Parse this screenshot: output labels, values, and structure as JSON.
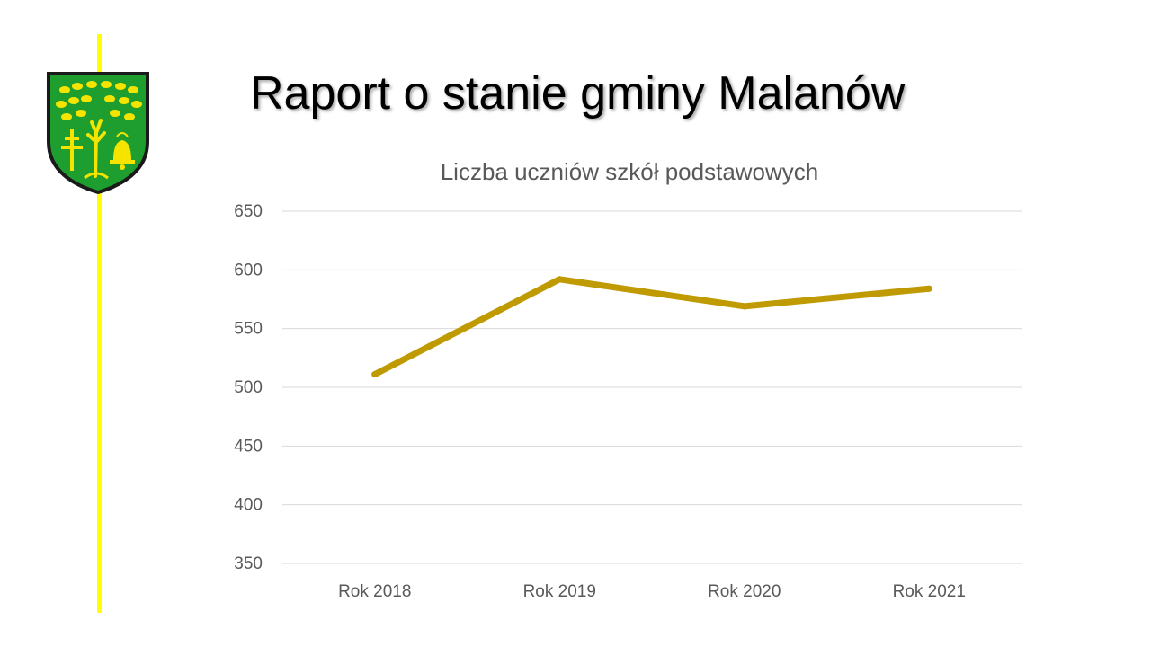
{
  "title": "Raport o stanie gminy Malanów",
  "chart_data": {
    "type": "line",
    "title": "Liczba uczniów szkół podstawowych",
    "categories": [
      "Rok 2018",
      "Rok 2019",
      "Rok 2020",
      "Rok 2021"
    ],
    "series": [
      {
        "name": "Liczba uczniów",
        "values": [
          511,
          592,
          569,
          584
        ]
      }
    ],
    "ylim": [
      350,
      650
    ],
    "yticks": [
      350,
      400,
      450,
      500,
      550,
      600,
      650
    ],
    "xlabel": "",
    "ylabel": "",
    "grid": true,
    "legend": "none"
  },
  "colors": {
    "line": "#bf9a00",
    "accent": "#ffff00",
    "grid": "#d9d9d9",
    "axis_text": "#595959",
    "shield_green": "#1e9e2e",
    "shield_yellow": "#f5e400"
  },
  "logo": {
    "icon": "coat-of-arms-icon"
  }
}
